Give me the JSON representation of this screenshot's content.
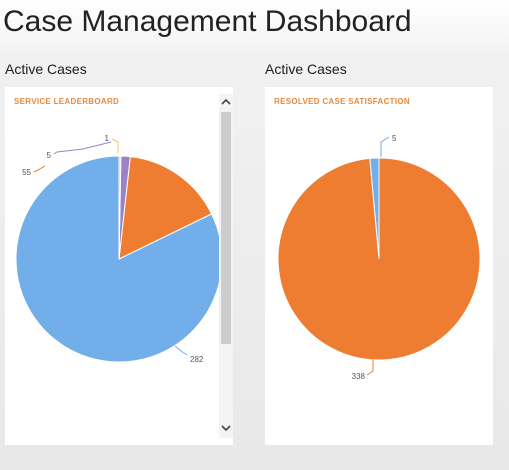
{
  "app": {
    "title": "Case Management Dashboard"
  },
  "left_panel": {
    "section_label": "Active Cases",
    "chart_title": "SERVICE LEADERBOARD"
  },
  "right_panel": {
    "section_label": "Active Cases",
    "chart_title": "RESOLVED CASE SATISFACTION"
  },
  "colors": {
    "accent_title": "#e8893c",
    "blue": "#71aeea",
    "orange": "#ee7d31",
    "purple": "#9b82c6",
    "yellow": "#f2c94c"
  },
  "icons": {
    "scroll_up": "chevron-up-icon",
    "scroll_down": "chevron-down-icon"
  },
  "chart_data": [
    {
      "type": "pie",
      "title": "SERVICE LEADERBOARD",
      "slices": [
        {
          "label": "282",
          "value": 282,
          "color": "#71aeea"
        },
        {
          "label": "55",
          "value": 55,
          "color": "#ee7d31"
        },
        {
          "label": "5",
          "value": 5,
          "color": "#9b82c6"
        },
        {
          "label": "1",
          "value": 1,
          "color": "#f2c94c"
        }
      ]
    },
    {
      "type": "pie",
      "title": "RESOLVED CASE SATISFACTION",
      "slices": [
        {
          "label": "5",
          "value": 5,
          "color": "#71aeea"
        },
        {
          "label": "338",
          "value": 338,
          "color": "#ee7d31"
        }
      ]
    }
  ]
}
